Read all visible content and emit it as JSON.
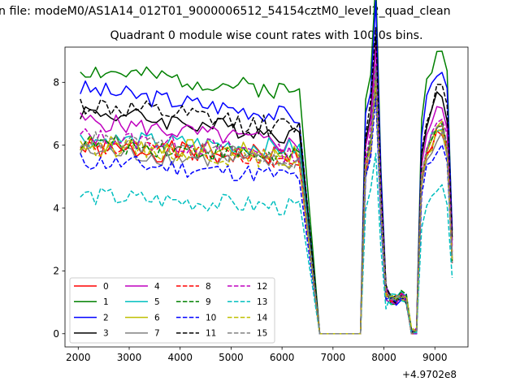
{
  "chart_data": {
    "type": "line",
    "suptitle": "n file: modeM0/AS1A14_012T01_9000006512_54154cztM0_level2_quad_clean",
    "title": "Quadrant 0 module wise count rates with 100.0s bins.",
    "xlabel": "",
    "ylabel": "",
    "x_offset_label": "+4.9702e8",
    "xlim": [
      1740,
      9650
    ],
    "ylim": [
      -0.42,
      9.12
    ],
    "xticks": [
      "2000",
      "3000",
      "4000",
      "5000",
      "6000",
      "7000",
      "8000",
      "9000"
    ],
    "yticks": [
      "0",
      "2",
      "4",
      "6",
      "8"
    ],
    "grid": false,
    "legend_position": "lower-left",
    "x_segments": [
      {
        "start": 2040,
        "step": 100,
        "count": 44
      },
      {
        "start": 7640,
        "step": 100,
        "count": 18
      }
    ],
    "series": [
      {
        "name": "0",
        "color": "#ff0000",
        "dash": "solid",
        "base": 5.9,
        "amp": 0.35,
        "trend": -0.25,
        "seed": 1
      },
      {
        "name": "1",
        "color": "#008000",
        "dash": "solid",
        "base": 8.4,
        "amp": 0.3,
        "trend": -0.7,
        "seed": 2
      },
      {
        "name": "2",
        "color": "#0000ff",
        "dash": "solid",
        "base": 7.8,
        "amp": 0.3,
        "trend": -0.9,
        "seed": 3
      },
      {
        "name": "3",
        "color": "#000000",
        "dash": "solid",
        "base": 7.1,
        "amp": 0.3,
        "trend": -0.8,
        "seed": 4
      },
      {
        "name": "4",
        "color": "#bf00bf",
        "dash": "solid",
        "base": 6.8,
        "amp": 0.3,
        "trend": -0.8,
        "seed": 5
      },
      {
        "name": "5",
        "color": "#00bfbf",
        "dash": "solid",
        "base": 6.2,
        "amp": 0.3,
        "trend": -0.3,
        "seed": 6
      },
      {
        "name": "6",
        "color": "#bfbf00",
        "dash": "solid",
        "base": 6.1,
        "amp": 0.3,
        "trend": -0.4,
        "seed": 7
      },
      {
        "name": "7",
        "color": "#808080",
        "dash": "solid",
        "base": 5.8,
        "amp": 0.3,
        "trend": -0.4,
        "seed": 8
      },
      {
        "name": "8",
        "color": "#ff0000",
        "dash": "dashed",
        "base": 6.0,
        "amp": 0.3,
        "trend": -0.5,
        "seed": 9
      },
      {
        "name": "9",
        "color": "#008000",
        "dash": "dashed",
        "base": 6.1,
        "amp": 0.3,
        "trend": -0.5,
        "seed": 10
      },
      {
        "name": "10",
        "color": "#0000ff",
        "dash": "dashed",
        "base": 5.5,
        "amp": 0.3,
        "trend": -0.5,
        "seed": 11
      },
      {
        "name": "11",
        "color": "#000000",
        "dash": "dashed",
        "base": 7.3,
        "amp": 0.35,
        "trend": -0.8,
        "seed": 12
      },
      {
        "name": "12",
        "color": "#bf00bf",
        "dash": "dashed",
        "base": 6.3,
        "amp": 0.3,
        "trend": -0.6,
        "seed": 13
      },
      {
        "name": "13",
        "color": "#00bfbf",
        "dash": "dashed",
        "base": 4.4,
        "amp": 0.3,
        "trend": -0.4,
        "seed": 14
      },
      {
        "name": "14",
        "color": "#bfbf00",
        "dash": "dashed",
        "base": 6.0,
        "amp": 0.3,
        "trend": -0.5,
        "seed": 15
      },
      {
        "name": "15",
        "color": "#808080",
        "dash": "dashed",
        "base": 6.2,
        "amp": 0.3,
        "trend": -0.7,
        "seed": 16
      }
    ]
  }
}
